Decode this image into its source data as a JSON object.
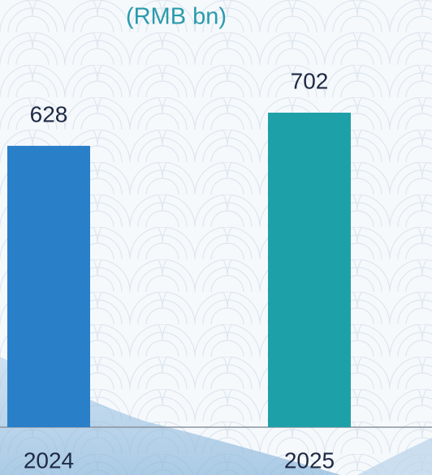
{
  "chart_data": {
    "type": "bar",
    "subtitle": "(RMB bn)",
    "categories": [
      "2024",
      "2025"
    ],
    "values": [
      628,
      702
    ],
    "colors": [
      "#2a7fc9",
      "#1ea0a8"
    ]
  }
}
